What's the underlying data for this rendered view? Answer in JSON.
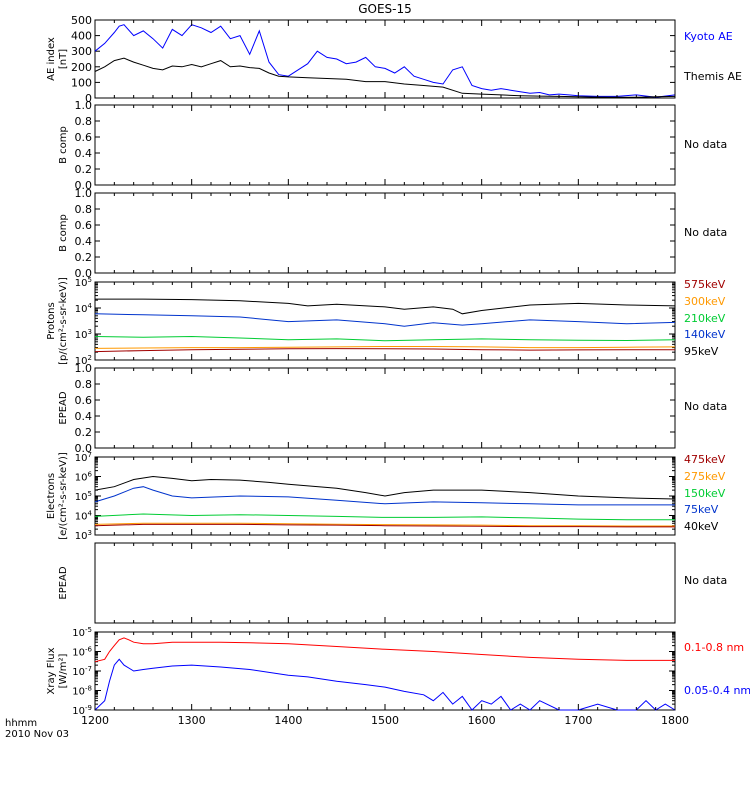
{
  "title": "GOES-15",
  "x_ticks": [
    "1200",
    "1300",
    "1400",
    "1500",
    "1600",
    "1700",
    "1800"
  ],
  "x_unit_label": "hhmm",
  "date_label": "2010 Nov 03",
  "no_data_text": "No data",
  "panels": {
    "ae": {
      "ylabel1": "AE index",
      "ylabel2": "[nT]",
      "ticks": [
        "0",
        "100",
        "200",
        "300",
        "400",
        "500"
      ],
      "legend": [
        {
          "label": "Kyoto AE",
          "color": "#0000ff"
        },
        {
          "label": "Themis AE",
          "color": "#000000"
        }
      ]
    },
    "b1": {
      "ylabel": "B comp",
      "ticks": [
        "0.0",
        "0.2",
        "0.4",
        "0.6",
        "0.8",
        "1.0"
      ]
    },
    "b2": {
      "ylabel": "B comp",
      "ticks": [
        "0.0",
        "0.2",
        "0.4",
        "0.6",
        "0.8",
        "1.0"
      ]
    },
    "protons": {
      "ylabel1": "Protons",
      "ylabel2": "[p/(cm²-s-sr-keV)]",
      "ticks": [
        {
          "base": "10",
          "exp": "2"
        },
        {
          "base": "10",
          "exp": "3"
        },
        {
          "base": "10",
          "exp": "4"
        },
        {
          "base": "10",
          "exp": "5"
        }
      ],
      "legend": [
        {
          "label": "575keV",
          "color": "#a00000"
        },
        {
          "label": "300keV",
          "color": "#ff9900"
        },
        {
          "label": "210keV",
          "color": "#00cc33"
        },
        {
          "label": "140keV",
          "color": "#0033cc"
        },
        {
          "label": "95keV",
          "color": "#000000"
        }
      ]
    },
    "epead1": {
      "ylabel": "EPEAD",
      "ticks": [
        "0.0",
        "0.2",
        "0.4",
        "0.6",
        "0.8",
        "1.0"
      ]
    },
    "electrons": {
      "ylabel1": "Electrons",
      "ylabel2": "[e/(cm²-s-sr-keV)]",
      "ticks": [
        {
          "base": "10",
          "exp": "3"
        },
        {
          "base": "10",
          "exp": "4"
        },
        {
          "base": "10",
          "exp": "5"
        },
        {
          "base": "10",
          "exp": "6"
        },
        {
          "base": "10",
          "exp": "7"
        }
      ],
      "legend": [
        {
          "label": "475keV",
          "color": "#a00000"
        },
        {
          "label": "275keV",
          "color": "#ff9900"
        },
        {
          "label": "150keV",
          "color": "#00cc33"
        },
        {
          "label": "75keV",
          "color": "#0033cc"
        },
        {
          "label": "40keV",
          "color": "#000000"
        }
      ]
    },
    "epead2": {
      "ylabel": "EPEAD"
    },
    "xray": {
      "ylabel1": "Xray Flux",
      "ylabel2": "[W/m²]",
      "ticks": [
        {
          "base": "10",
          "exp": "-9"
        },
        {
          "base": "10",
          "exp": "-8"
        },
        {
          "base": "10",
          "exp": "-7"
        },
        {
          "base": "10",
          "exp": "-6"
        },
        {
          "base": "10",
          "exp": "-5"
        }
      ],
      "legend": [
        {
          "label": "0.1-0.8 nm",
          "color": "#ff0000"
        },
        {
          "label": "0.05-0.4 nm",
          "color": "#0000ff"
        }
      ]
    }
  },
  "chart_data": [
    {
      "panel": "ae",
      "type": "line",
      "ylim": [
        0,
        500
      ],
      "xlim": [
        1200,
        1800
      ],
      "series": [
        {
          "name": "Kyoto AE",
          "color": "#0000ff",
          "x": [
            1200,
            1210,
            1220,
            1225,
            1230,
            1240,
            1250,
            1260,
            1270,
            1280,
            1290,
            1300,
            1310,
            1320,
            1330,
            1340,
            1350,
            1360,
            1370,
            1380,
            1390,
            1400,
            1410,
            1420,
            1430,
            1440,
            1450,
            1460,
            1470,
            1480,
            1490,
            1500,
            1510,
            1520,
            1530,
            1540,
            1550,
            1560,
            1570,
            1580,
            1590,
            1600,
            1610,
            1620,
            1630,
            1640,
            1650,
            1660,
            1670,
            1680,
            1690,
            1700,
            1720,
            1740,
            1760,
            1780,
            1800
          ],
          "y": [
            300,
            350,
            420,
            460,
            470,
            400,
            430,
            380,
            320,
            440,
            400,
            470,
            450,
            420,
            460,
            380,
            400,
            280,
            430,
            230,
            150,
            140,
            180,
            220,
            300,
            260,
            250,
            220,
            230,
            260,
            200,
            190,
            160,
            200,
            140,
            120,
            100,
            90,
            180,
            200,
            80,
            60,
            50,
            60,
            50,
            40,
            30,
            35,
            20,
            25,
            20,
            15,
            10,
            10,
            20,
            5,
            20
          ]
        },
        {
          "name": "Themis AE",
          "color": "#000000",
          "x": [
            1200,
            1210,
            1220,
            1230,
            1240,
            1250,
            1260,
            1270,
            1280,
            1290,
            1300,
            1310,
            1320,
            1330,
            1340,
            1350,
            1360,
            1370,
            1380,
            1390,
            1400,
            1420,
            1440,
            1460,
            1480,
            1500,
            1520,
            1540,
            1560,
            1580,
            1600,
            1620,
            1640,
            1660,
            1680,
            1700,
            1720,
            1740,
            1760,
            1780,
            1800
          ],
          "y": [
            170,
            200,
            240,
            255,
            230,
            210,
            190,
            180,
            205,
            200,
            215,
            200,
            220,
            240,
            200,
            205,
            195,
            190,
            160,
            140,
            135,
            130,
            125,
            120,
            105,
            105,
            90,
            80,
            70,
            30,
            25,
            20,
            15,
            12,
            10,
            8,
            6,
            5,
            5,
            8,
            10
          ]
        }
      ]
    },
    {
      "panel": "b1",
      "type": "line",
      "ylim": [
        0,
        1
      ],
      "series": []
    },
    {
      "panel": "b2",
      "type": "line",
      "ylim": [
        0,
        1
      ],
      "series": []
    },
    {
      "panel": "protons",
      "type": "line",
      "scale": "log",
      "ylim": [
        100,
        100000
      ],
      "xlim": [
        1200,
        1800
      ],
      "series": [
        {
          "name": "95keV",
          "color": "#000000",
          "x": [
            1200,
            1250,
            1300,
            1350,
            1400,
            1420,
            1450,
            1500,
            1520,
            1550,
            1570,
            1580,
            1600,
            1650,
            1700,
            1750,
            1800
          ],
          "y": [
            22000,
            22000,
            21000,
            19000,
            15000,
            12000,
            14000,
            11000,
            9000,
            11000,
            9000,
            6000,
            8000,
            13000,
            15000,
            13000,
            12000
          ]
        },
        {
          "name": "140keV",
          "color": "#0033cc",
          "x": [
            1200,
            1250,
            1300,
            1350,
            1400,
            1450,
            1500,
            1520,
            1550,
            1580,
            1600,
            1650,
            1700,
            1750,
            1800
          ],
          "y": [
            6000,
            5500,
            5000,
            4500,
            3000,
            3500,
            2500,
            2000,
            2700,
            2200,
            2500,
            3500,
            3000,
            2500,
            2800
          ]
        },
        {
          "name": "210keV",
          "color": "#00cc33",
          "x": [
            1200,
            1250,
            1300,
            1350,
            1400,
            1450,
            1500,
            1550,
            1600,
            1650,
            1700,
            1750,
            1800
          ],
          "y": [
            800,
            750,
            800,
            700,
            600,
            650,
            550,
            600,
            650,
            600,
            580,
            560,
            600
          ]
        },
        {
          "name": "300keV",
          "color": "#ff9900",
          "x": [
            1200,
            1250,
            1300,
            1350,
            1400,
            1450,
            1500,
            1550,
            1600,
            1650,
            1700,
            1750,
            1800
          ],
          "y": [
            280,
            290,
            300,
            300,
            310,
            320,
            330,
            330,
            320,
            300,
            300,
            310,
            320
          ]
        },
        {
          "name": "575keV",
          "color": "#a00000",
          "x": [
            1200,
            1250,
            1300,
            1350,
            1400,
            1450,
            1500,
            1550,
            1600,
            1650,
            1700,
            1750,
            1800
          ],
          "y": [
            210,
            230,
            250,
            260,
            270,
            275,
            270,
            265,
            250,
            240,
            245,
            250,
            250
          ]
        }
      ]
    },
    {
      "panel": "epead1",
      "type": "line",
      "ylim": [
        0,
        1
      ],
      "series": []
    },
    {
      "panel": "electrons",
      "type": "line",
      "scale": "log",
      "ylim": [
        1000,
        10000000
      ],
      "xlim": [
        1200,
        1800
      ],
      "series": [
        {
          "name": "40keV",
          "color": "#000000",
          "x": [
            1200,
            1220,
            1240,
            1260,
            1280,
            1300,
            1320,
            1350,
            1380,
            1400,
            1450,
            1480,
            1500,
            1520,
            1550,
            1600,
            1650,
            1700,
            1750,
            1800
          ],
          "y": [
            200000,
            300000,
            700000,
            1000000,
            800000,
            600000,
            700000,
            650000,
            500000,
            400000,
            250000,
            150000,
            100000,
            150000,
            200000,
            200000,
            150000,
            100000,
            80000,
            70000
          ]
        },
        {
          "name": "75keV",
          "color": "#0033cc",
          "x": [
            1200,
            1220,
            1240,
            1250,
            1260,
            1280,
            1300,
            1350,
            1400,
            1450,
            1500,
            1550,
            1600,
            1650,
            1700,
            1750,
            1800
          ],
          "y": [
            50000,
            100000,
            250000,
            300000,
            200000,
            100000,
            80000,
            100000,
            90000,
            60000,
            40000,
            50000,
            45000,
            40000,
            35000,
            35000,
            35000
          ]
        },
        {
          "name": "150keV",
          "color": "#00cc33",
          "x": [
            1200,
            1250,
            1300,
            1350,
            1400,
            1450,
            1500,
            1550,
            1600,
            1650,
            1700,
            1750,
            1800
          ],
          "y": [
            9000,
            12000,
            10000,
            11000,
            10000,
            9000,
            8000,
            8000,
            8500,
            7500,
            6500,
            6000,
            6000
          ]
        },
        {
          "name": "275keV",
          "color": "#ff9900",
          "x": [
            1200,
            1250,
            1300,
            1350,
            1400,
            1450,
            1500,
            1550,
            1600,
            1650,
            1700,
            1750,
            1800
          ],
          "y": [
            3500,
            4000,
            4000,
            4000,
            3800,
            3600,
            3400,
            3300,
            3200,
            3000,
            3000,
            2900,
            2900
          ]
        },
        {
          "name": "475keV",
          "color": "#a00000",
          "x": [
            1200,
            1250,
            1300,
            1350,
            1400,
            1450,
            1500,
            1550,
            1600,
            1650,
            1700,
            1750,
            1800
          ],
          "y": [
            3000,
            3500,
            3500,
            3500,
            3300,
            3200,
            3000,
            2900,
            2800,
            2700,
            2700,
            2600,
            2600
          ]
        }
      ]
    },
    {
      "panel": "epead2",
      "type": "line",
      "series": []
    },
    {
      "panel": "xray",
      "type": "line",
      "scale": "log",
      "ylim": [
        1e-09,
        1e-05
      ],
      "xlim": [
        1200,
        1800
      ],
      "series": [
        {
          "name": "0.1-0.8 nm",
          "color": "#ff0000",
          "x": [
            1200,
            1210,
            1215,
            1220,
            1225,
            1230,
            1235,
            1240,
            1250,
            1260,
            1280,
            1300,
            1330,
            1360,
            1400,
            1450,
            1500,
            1550,
            1600,
            1650,
            1700,
            1750,
            1800
          ],
          "y": [
            3e-07,
            4e-07,
            1e-06,
            2e-06,
            4e-06,
            5e-06,
            4e-06,
            3e-06,
            2.5e-06,
            2.5e-06,
            3e-06,
            3e-06,
            3e-06,
            2.8e-06,
            2.5e-06,
            1.8e-06,
            1.3e-06,
            1e-06,
            7e-07,
            5e-07,
            4e-07,
            3.5e-07,
            3.5e-07
          ]
        },
        {
          "name": "0.05-0.4 nm",
          "color": "#0000ff",
          "x": [
            1200,
            1210,
            1215,
            1220,
            1225,
            1230,
            1240,
            1250,
            1260,
            1280,
            1300,
            1330,
            1360,
            1400,
            1420,
            1450,
            1480,
            1500,
            1520,
            1540,
            1550,
            1560,
            1570,
            1580,
            1590,
            1600,
            1610,
            1620,
            1630,
            1640,
            1650,
            1660,
            1680,
            1700,
            1720,
            1740,
            1760,
            1770,
            1780,
            1790,
            1800
          ],
          "y": [
            1e-09,
            3e-09,
            3e-08,
            2e-07,
            4e-07,
            2e-07,
            1e-07,
            1.2e-07,
            1.4e-07,
            1.8e-07,
            2e-07,
            1.6e-07,
            1.2e-07,
            6e-08,
            5e-08,
            3e-08,
            2e-08,
            1.5e-08,
            9e-09,
            6e-09,
            3e-09,
            8e-09,
            2e-09,
            5e-09,
            1e-09,
            3e-09,
            2e-09,
            5e-09,
            1e-09,
            2e-09,
            1e-09,
            3e-09,
            1e-09,
            1e-09,
            2e-09,
            1e-09,
            1e-09,
            3e-09,
            1e-09,
            2e-09,
            1e-09
          ]
        }
      ]
    }
  ]
}
